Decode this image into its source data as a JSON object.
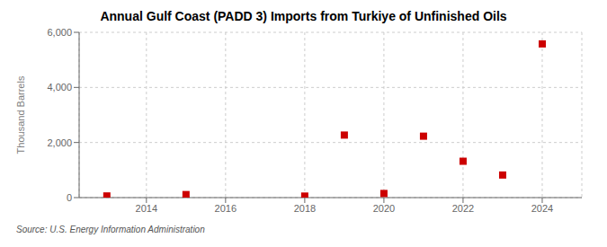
{
  "chart_data": {
    "type": "scatter",
    "title": "Annual Gulf Coast (PADD 3) Imports from Turkiye of Unfinished Oils",
    "ylabel": "Thousand Barrels",
    "annotations": [
      "Source: U.S. Energy Information Administration"
    ],
    "x": [
      2013,
      2015,
      2018,
      2019,
      2020,
      2021,
      2022,
      2023,
      2024
    ],
    "values": [
      60,
      110,
      55,
      2270,
      150,
      2230,
      1320,
      820,
      5580
    ],
    "color": "#cc0000",
    "marker": "square",
    "grid": true,
    "xlim": [
      2012.3,
      2025.0
    ],
    "ylim": [
      0,
      6000
    ],
    "xticks": [
      2014,
      2016,
      2018,
      2020,
      2022,
      2024
    ],
    "yticks": [
      0,
      {
        "value": 2000,
        "label": "2,000"
      },
      {
        "value": 4000,
        "label": "4,000"
      },
      {
        "value": 6000,
        "label": "6,000"
      }
    ]
  }
}
